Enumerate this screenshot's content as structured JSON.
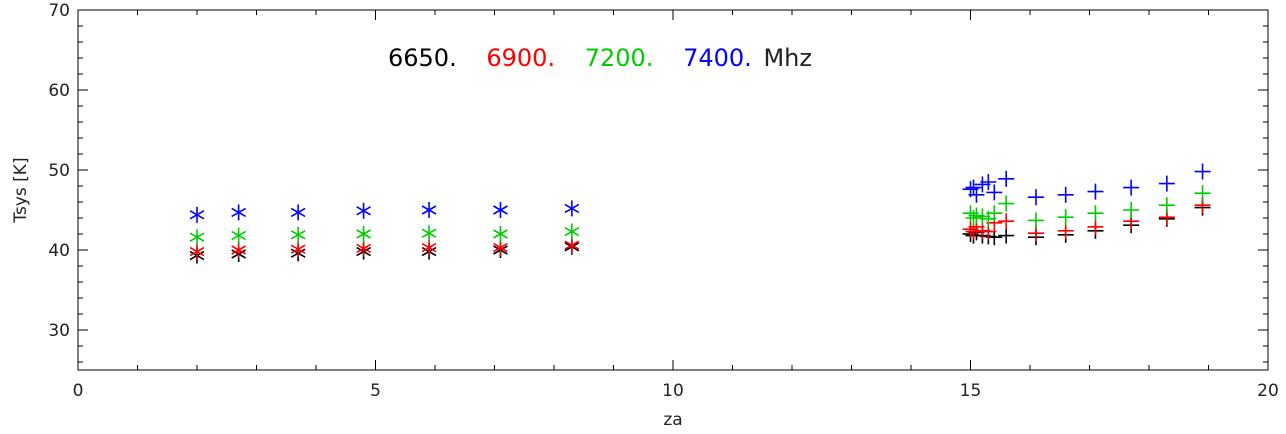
{
  "chart_data": {
    "type": "scatter",
    "title": "",
    "xlabel": "za",
    "ylabel": "Tsys [K]",
    "xlim": [
      0,
      20
    ],
    "ylim": [
      25,
      70
    ],
    "x_ticks": [
      "0",
      "5",
      "10",
      "15",
      "20"
    ],
    "y_ticks": [
      "30",
      "40",
      "50",
      "60",
      "70"
    ],
    "grid": false,
    "legend": {
      "placement": "top-center",
      "entries": [
        "6650.",
        "6900.",
        "7200.",
        "7400."
      ],
      "unit": "Mhz"
    },
    "series": [
      {
        "name": "6650.",
        "color": "#000000",
        "asterisk": {
          "x": [
            2.0,
            2.7,
            3.7,
            4.8,
            5.9,
            7.1,
            8.3
          ],
          "y": [
            39.3,
            39.5,
            39.6,
            39.8,
            39.8,
            40.0,
            40.4
          ]
        },
        "plus": {
          "x": [
            15.0,
            15.05,
            15.1,
            15.2,
            15.3,
            15.4,
            15.6,
            16.1,
            16.6,
            17.1,
            17.7,
            18.3,
            18.9
          ],
          "y": [
            42.0,
            41.8,
            42.2,
            41.8,
            41.7,
            41.6,
            41.8,
            41.6,
            41.9,
            42.4,
            43.1,
            43.9,
            45.3
          ]
        }
      },
      {
        "name": "6900.",
        "color": "#ff0000",
        "asterisk": {
          "x": [
            2.0,
            2.7,
            3.7,
            4.8,
            5.9,
            7.1,
            8.3
          ],
          "y": [
            39.8,
            40.0,
            40.1,
            40.2,
            40.3,
            40.3,
            40.6
          ]
        },
        "plus": {
          "x": [
            15.0,
            15.05,
            15.1,
            15.2,
            15.3,
            15.4,
            15.6,
            16.1,
            16.6,
            17.1,
            17.7,
            18.3,
            18.9
          ],
          "y": [
            42.6,
            42.3,
            42.9,
            42.4,
            42.3,
            43.4,
            43.6,
            42.1,
            42.4,
            42.9,
            43.6,
            44.1,
            45.6
          ]
        }
      },
      {
        "name": "7200.",
        "color": "#00cc00",
        "asterisk": {
          "x": [
            2.0,
            2.7,
            3.7,
            4.8,
            5.9,
            7.1,
            8.3
          ],
          "y": [
            41.6,
            41.8,
            41.9,
            42.0,
            42.1,
            42.0,
            42.3
          ]
        },
        "plus": {
          "x": [
            15.0,
            15.05,
            15.1,
            15.2,
            15.3,
            15.4,
            15.6,
            16.1,
            16.6,
            17.1,
            17.7,
            18.3,
            18.9
          ],
          "y": [
            44.6,
            44.0,
            44.3,
            44.2,
            43.9,
            44.6,
            45.8,
            43.7,
            44.1,
            44.6,
            45.0,
            45.6,
            47.1
          ]
        }
      },
      {
        "name": "7400.",
        "color": "#0000ff",
        "asterisk": {
          "x": [
            2.0,
            2.7,
            3.7,
            4.8,
            5.9,
            7.1,
            8.3
          ],
          "y": [
            44.4,
            44.7,
            44.7,
            44.9,
            45.0,
            45.0,
            45.2
          ]
        },
        "plus": {
          "x": [
            15.0,
            15.05,
            15.1,
            15.2,
            15.3,
            15.4,
            15.6,
            16.1,
            16.6,
            17.1,
            17.7,
            18.3,
            18.9
          ],
          "y": [
            47.6,
            47.8,
            46.9,
            48.2,
            48.5,
            47.2,
            48.9,
            46.6,
            46.9,
            47.3,
            47.8,
            48.3,
            49.8
          ]
        }
      }
    ]
  }
}
